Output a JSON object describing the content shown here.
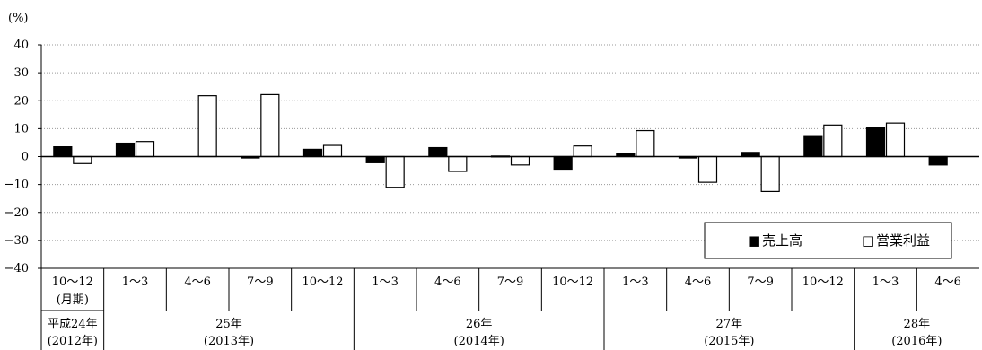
{
  "chart_data": {
    "type": "bar",
    "unit": "(%)",
    "ylim": [
      -40,
      40
    ],
    "yticks": [
      40,
      30,
      20,
      10,
      0,
      -10,
      -20,
      -30,
      -40
    ],
    "grid": true,
    "legend_position": "bottom-right",
    "categories": [
      "10〜12",
      "1〜3",
      "4〜6",
      "7〜9",
      "10〜12",
      "1〜3",
      "4〜6",
      "7〜9",
      "10〜12",
      "1〜3",
      "4〜6",
      "7〜9",
      "10〜12",
      "1〜3",
      "4〜6"
    ],
    "first_category_sublabel": "(月期)",
    "year_groups": [
      {
        "label": "平成24年",
        "sub": "(2012年)",
        "start": 0,
        "end": 0
      },
      {
        "label": "25年",
        "sub": "(2013年)",
        "start": 1,
        "end": 4
      },
      {
        "label": "26年",
        "sub": "(2014年)",
        "start": 5,
        "end": 8
      },
      {
        "label": "27年",
        "sub": "(2015年)",
        "start": 9,
        "end": 12
      },
      {
        "label": "28年",
        "sub": "(2016年)",
        "start": 13,
        "end": 14
      }
    ],
    "series": [
      {
        "name": "売上高",
        "color": "#000000",
        "values": [
          3.5,
          4.8,
          0,
          -0.5,
          2.6,
          -2.2,
          3.2,
          0.2,
          -4.5,
          1.0,
          -0.5,
          1.5,
          7.5,
          10.3,
          -3.0
        ]
      },
      {
        "name": "営業利益",
        "color": "#ffffff",
        "values": [
          -2.5,
          5.4,
          21.8,
          22.2,
          4.0,
          -11.0,
          -5.3,
          -3.0,
          3.8,
          9.3,
          -9.2,
          -12.5,
          11.3,
          12.0,
          0
        ]
      }
    ]
  },
  "legend": {
    "items": [
      {
        "marker": "■",
        "label": "売上高"
      },
      {
        "marker": "□",
        "label": "営業利益"
      }
    ]
  }
}
